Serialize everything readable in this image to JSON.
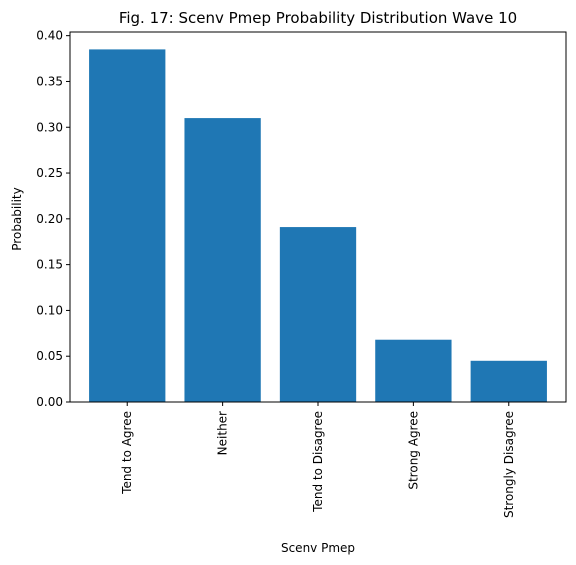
{
  "chart_data": {
    "type": "bar",
    "title": "Fig. 17: Scenv Pmep Probability Distribution Wave 10",
    "xlabel": "Scenv Pmep",
    "ylabel": "Probability",
    "categories": [
      "Tend to Agree",
      "Neither",
      "Tend to Disagree",
      "Strong Agree",
      "Strongly Disagree"
    ],
    "values": [
      0.385,
      0.31,
      0.191,
      0.068,
      0.045
    ],
    "ylim": [
      0,
      0.4
    ],
    "yticks": [
      0.0,
      0.05,
      0.1,
      0.15,
      0.2,
      0.25,
      0.3,
      0.35,
      0.4
    ],
    "ytick_labels": [
      "0.00",
      "0.05",
      "0.10",
      "0.15",
      "0.20",
      "0.25",
      "0.30",
      "0.35",
      "0.40"
    ],
    "x_tick_rotation": "vertical",
    "bar_color": "#1f77b4",
    "grid": false,
    "legend": "none"
  }
}
